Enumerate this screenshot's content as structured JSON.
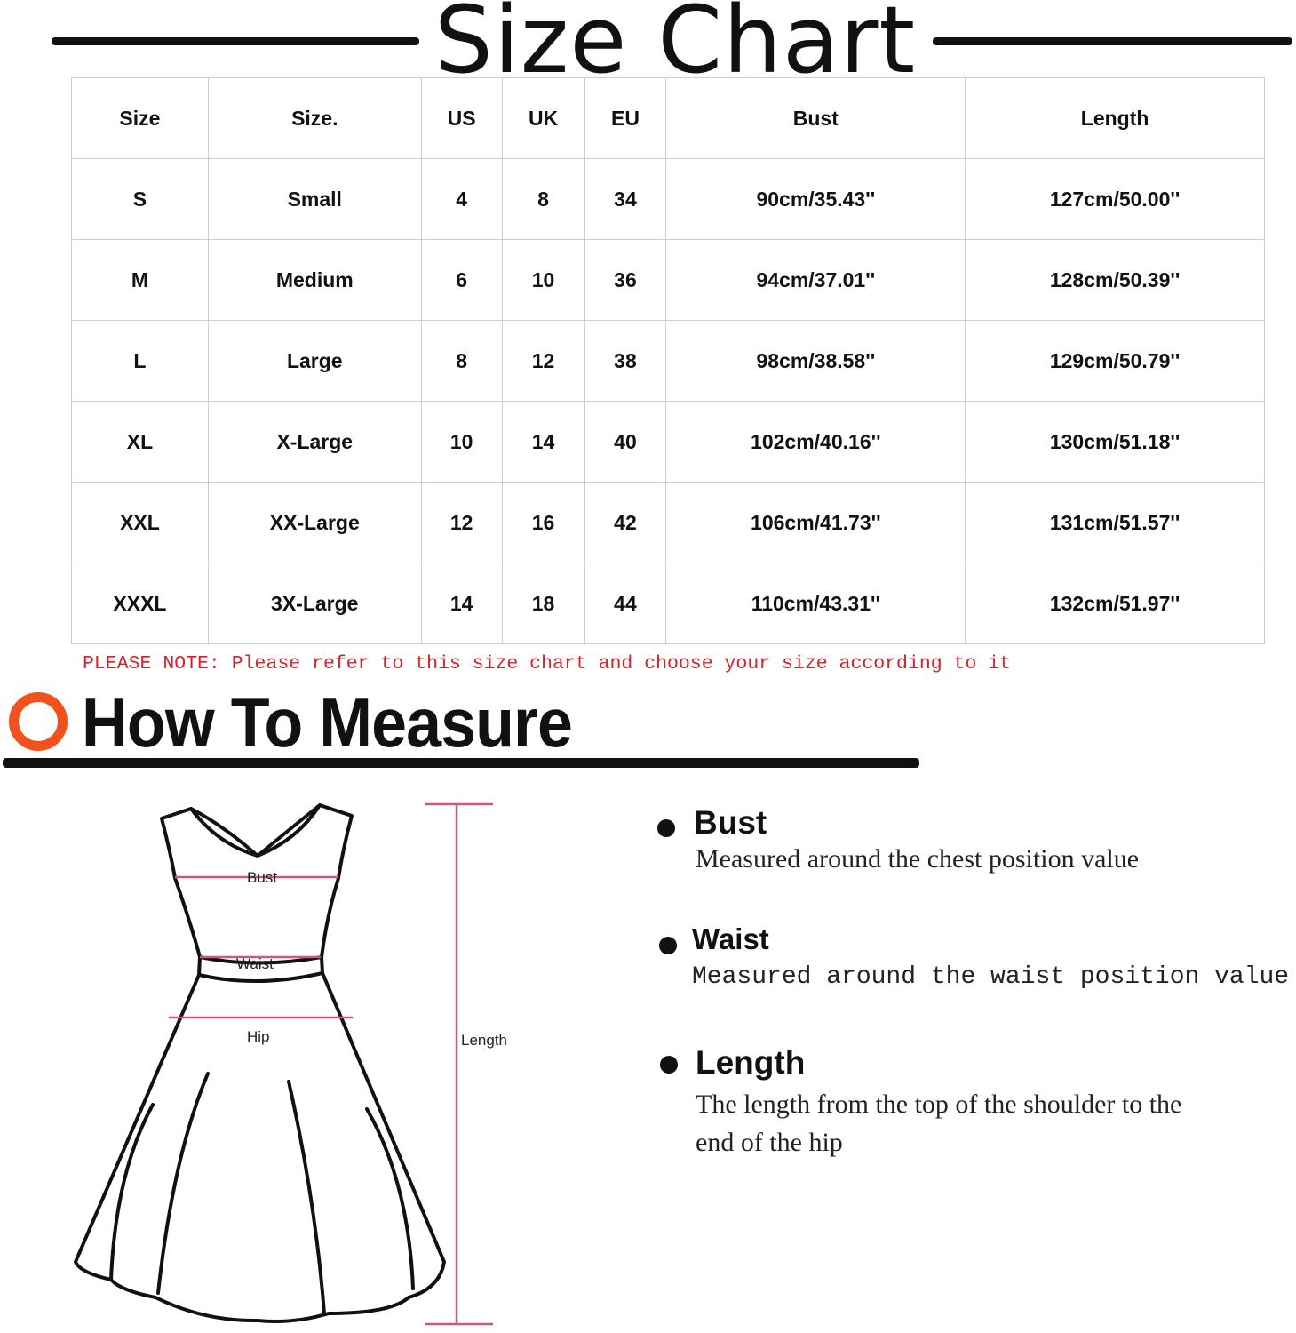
{
  "title": "Size Chart",
  "table": {
    "headers": [
      "Size",
      "Size.",
      "US",
      "UK",
      "EU",
      "Bust",
      "Length"
    ],
    "rows": [
      [
        "S",
        "Small",
        "4",
        "8",
        "34",
        "90cm/35.43''",
        "127cm/50.00''"
      ],
      [
        "M",
        "Medium",
        "6",
        "10",
        "36",
        "94cm/37.01''",
        "128cm/50.39''"
      ],
      [
        "L",
        "Large",
        "8",
        "12",
        "38",
        "98cm/38.58''",
        "129cm/50.79''"
      ],
      [
        "XL",
        "X-Large",
        "10",
        "14",
        "40",
        "102cm/40.16''",
        "130cm/51.18''"
      ],
      [
        "XXL",
        "XX-Large",
        "12",
        "16",
        "42",
        "106cm/41.73''",
        "131cm/51.57''"
      ],
      [
        "XXXL",
        "3X-Large",
        "14",
        "18",
        "44",
        "110cm/43.31''",
        "132cm/51.97''"
      ]
    ]
  },
  "note": "PLEASE NOTE: Please refer to this size chart and choose your size according to it",
  "how_to": {
    "title": "How To Measure",
    "icon": "orange-ring-icon",
    "accent": "#f1511b",
    "diagram_labels": {
      "bust": "Bust",
      "waist": "Waist",
      "hip": "Hip",
      "length": "Length"
    },
    "items": [
      {
        "heading": "Bust",
        "description": "Measured around the chest position value"
      },
      {
        "heading": "Waist",
        "description": "Measured around the waist position value"
      },
      {
        "heading": "Length",
        "description": "The length from the top of the shoulder to the end of the hip"
      }
    ]
  },
  "colors": {
    "note": "#d8202a",
    "measure_lines": "#d0567a"
  }
}
